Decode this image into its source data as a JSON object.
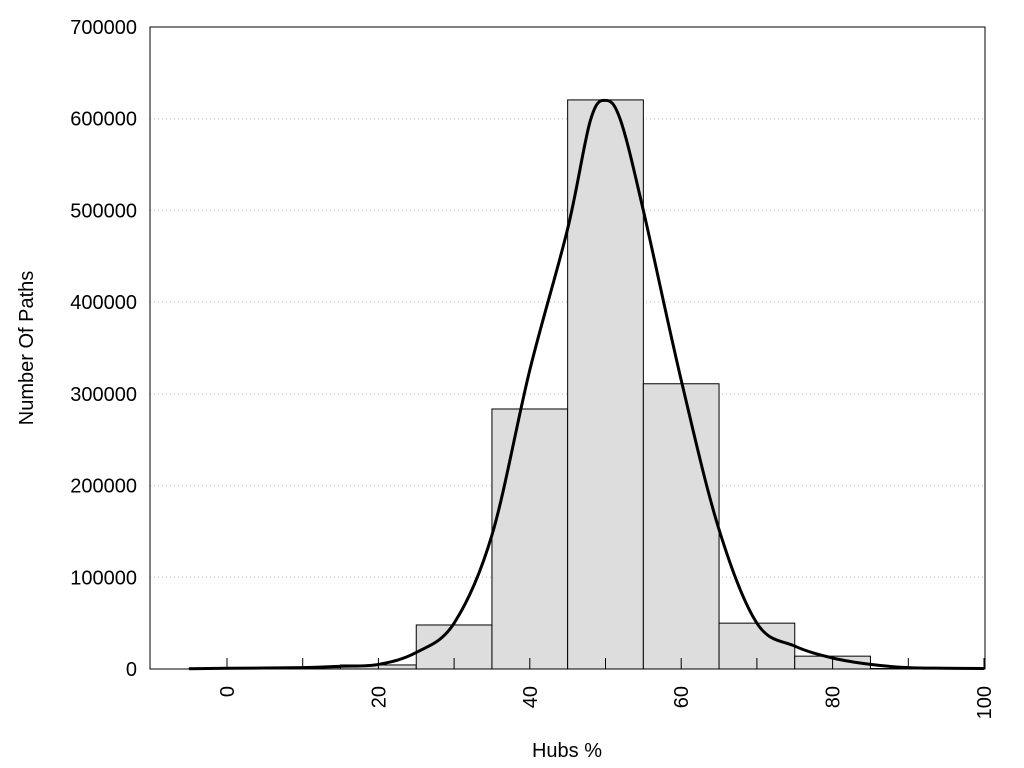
{
  "chart_data": {
    "type": "bar",
    "title": "",
    "xlabel": "Hubs %",
    "ylabel": "Number Of Paths",
    "xlim": [
      -10,
      100
    ],
    "ylim": [
      0,
      700000
    ],
    "grid": "horizontal dotted",
    "bar_width": 10,
    "bar_color": "#dddddd",
    "categories": [
      0,
      10,
      20,
      30,
      40,
      50,
      60,
      70,
      80,
      90
    ],
    "values": [
      1000,
      1500,
      4400,
      48000,
      283500,
      620500,
      311000,
      50000,
      14000,
      500
    ],
    "xticks": [
      0,
      10,
      20,
      30,
      40,
      50,
      60,
      70,
      80,
      90,
      100
    ],
    "xtick_labels": [
      "0",
      "20",
      "40",
      "60",
      "80",
      "100"
    ],
    "xtick_label_values": [
      0,
      20,
      40,
      60,
      80,
      100
    ],
    "yticks": [
      "0",
      "100000",
      "200000",
      "300000",
      "400000",
      "500000",
      "600000",
      "700000"
    ],
    "ytick_values": [
      0,
      100000,
      200000,
      300000,
      400000,
      500000,
      600000,
      700000
    ],
    "curve": {
      "x": [
        -5,
        0,
        10,
        15,
        20,
        25,
        30,
        35,
        40,
        45,
        48,
        50,
        52,
        55,
        60,
        65,
        70,
        75,
        80,
        85,
        90,
        95,
        100
      ],
      "y": [
        300,
        800,
        1500,
        3000,
        5000,
        18000,
        50000,
        146000,
        326000,
        480000,
        598000,
        620000,
        598000,
        500000,
        315000,
        152000,
        50000,
        25000,
        12000,
        5000,
        1500,
        800,
        500
      ]
    }
  }
}
